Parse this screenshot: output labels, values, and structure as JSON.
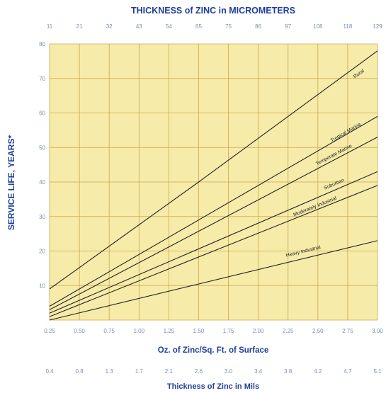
{
  "chart_data": {
    "type": "line",
    "top_axis_title": "THICKNESS of ZINC in MICROMETERS",
    "top_ticks": [
      "11",
      "21",
      "32",
      "43",
      "54",
      "65",
      "75",
      "86",
      "97",
      "108",
      "118",
      "129"
    ],
    "xlabel": "Oz. of Zinc/Sq. Ft. of Surface",
    "x_ticks": [
      "0.25",
      "0.50",
      "0.75",
      "1.00",
      "1.25",
      "1.50",
      "1.75",
      "2.00",
      "2.25",
      "2.50",
      "2.75",
      "3.00"
    ],
    "bottom_axis_title": "Thickness of Zinc in Mils",
    "bottom_ticks": [
      "0.4",
      "0.8",
      "1.3",
      "1.7",
      "2.1",
      "2.6",
      "3.0",
      "3.4",
      "3.8",
      "4.2",
      "4.7",
      "5.1"
    ],
    "ylabel": "SERVICE LIFE, YEARS*",
    "y_ticks": [
      "10",
      "20",
      "30",
      "40",
      "50",
      "60",
      "70",
      "80"
    ],
    "xlim": [
      0.25,
      3.0
    ],
    "ylim": [
      0,
      80
    ],
    "grid": true,
    "series": [
      {
        "name": "Rural",
        "points": [
          [
            0.25,
            9
          ],
          [
            1.5,
            40
          ],
          [
            3.0,
            78
          ]
        ],
        "label_at": [
          2.85,
          71
        ]
      },
      {
        "name": "Tropical Marine",
        "points": [
          [
            0.25,
            4
          ],
          [
            3.0,
            59
          ]
        ],
        "label_at": [
          2.74,
          54
        ]
      },
      {
        "name": "Temperate Marine",
        "points": [
          [
            0.25,
            3
          ],
          [
            3.0,
            53
          ]
        ],
        "label_at": [
          2.64,
          47.5
        ]
      },
      {
        "name": "Suburban",
        "points": [
          [
            0.25,
            2
          ],
          [
            3.0,
            43
          ]
        ],
        "label_at": [
          2.64,
          39
        ]
      },
      {
        "name": "Moderately Industrial",
        "points": [
          [
            0.25,
            1
          ],
          [
            3.0,
            39
          ]
        ],
        "label_at": [
          2.48,
          32.5
        ]
      },
      {
        "name": "Heavy Industrial",
        "points": [
          [
            0.25,
            0
          ],
          [
            3.0,
            23
          ]
        ],
        "label_at": [
          2.38,
          19.5
        ]
      }
    ]
  },
  "colors": {
    "plot_bg": "#f7ebaa",
    "grid": "#c9a94a",
    "lines": "#222222",
    "title": "#1f3f9a",
    "ticks": "#7a8fb0"
  }
}
